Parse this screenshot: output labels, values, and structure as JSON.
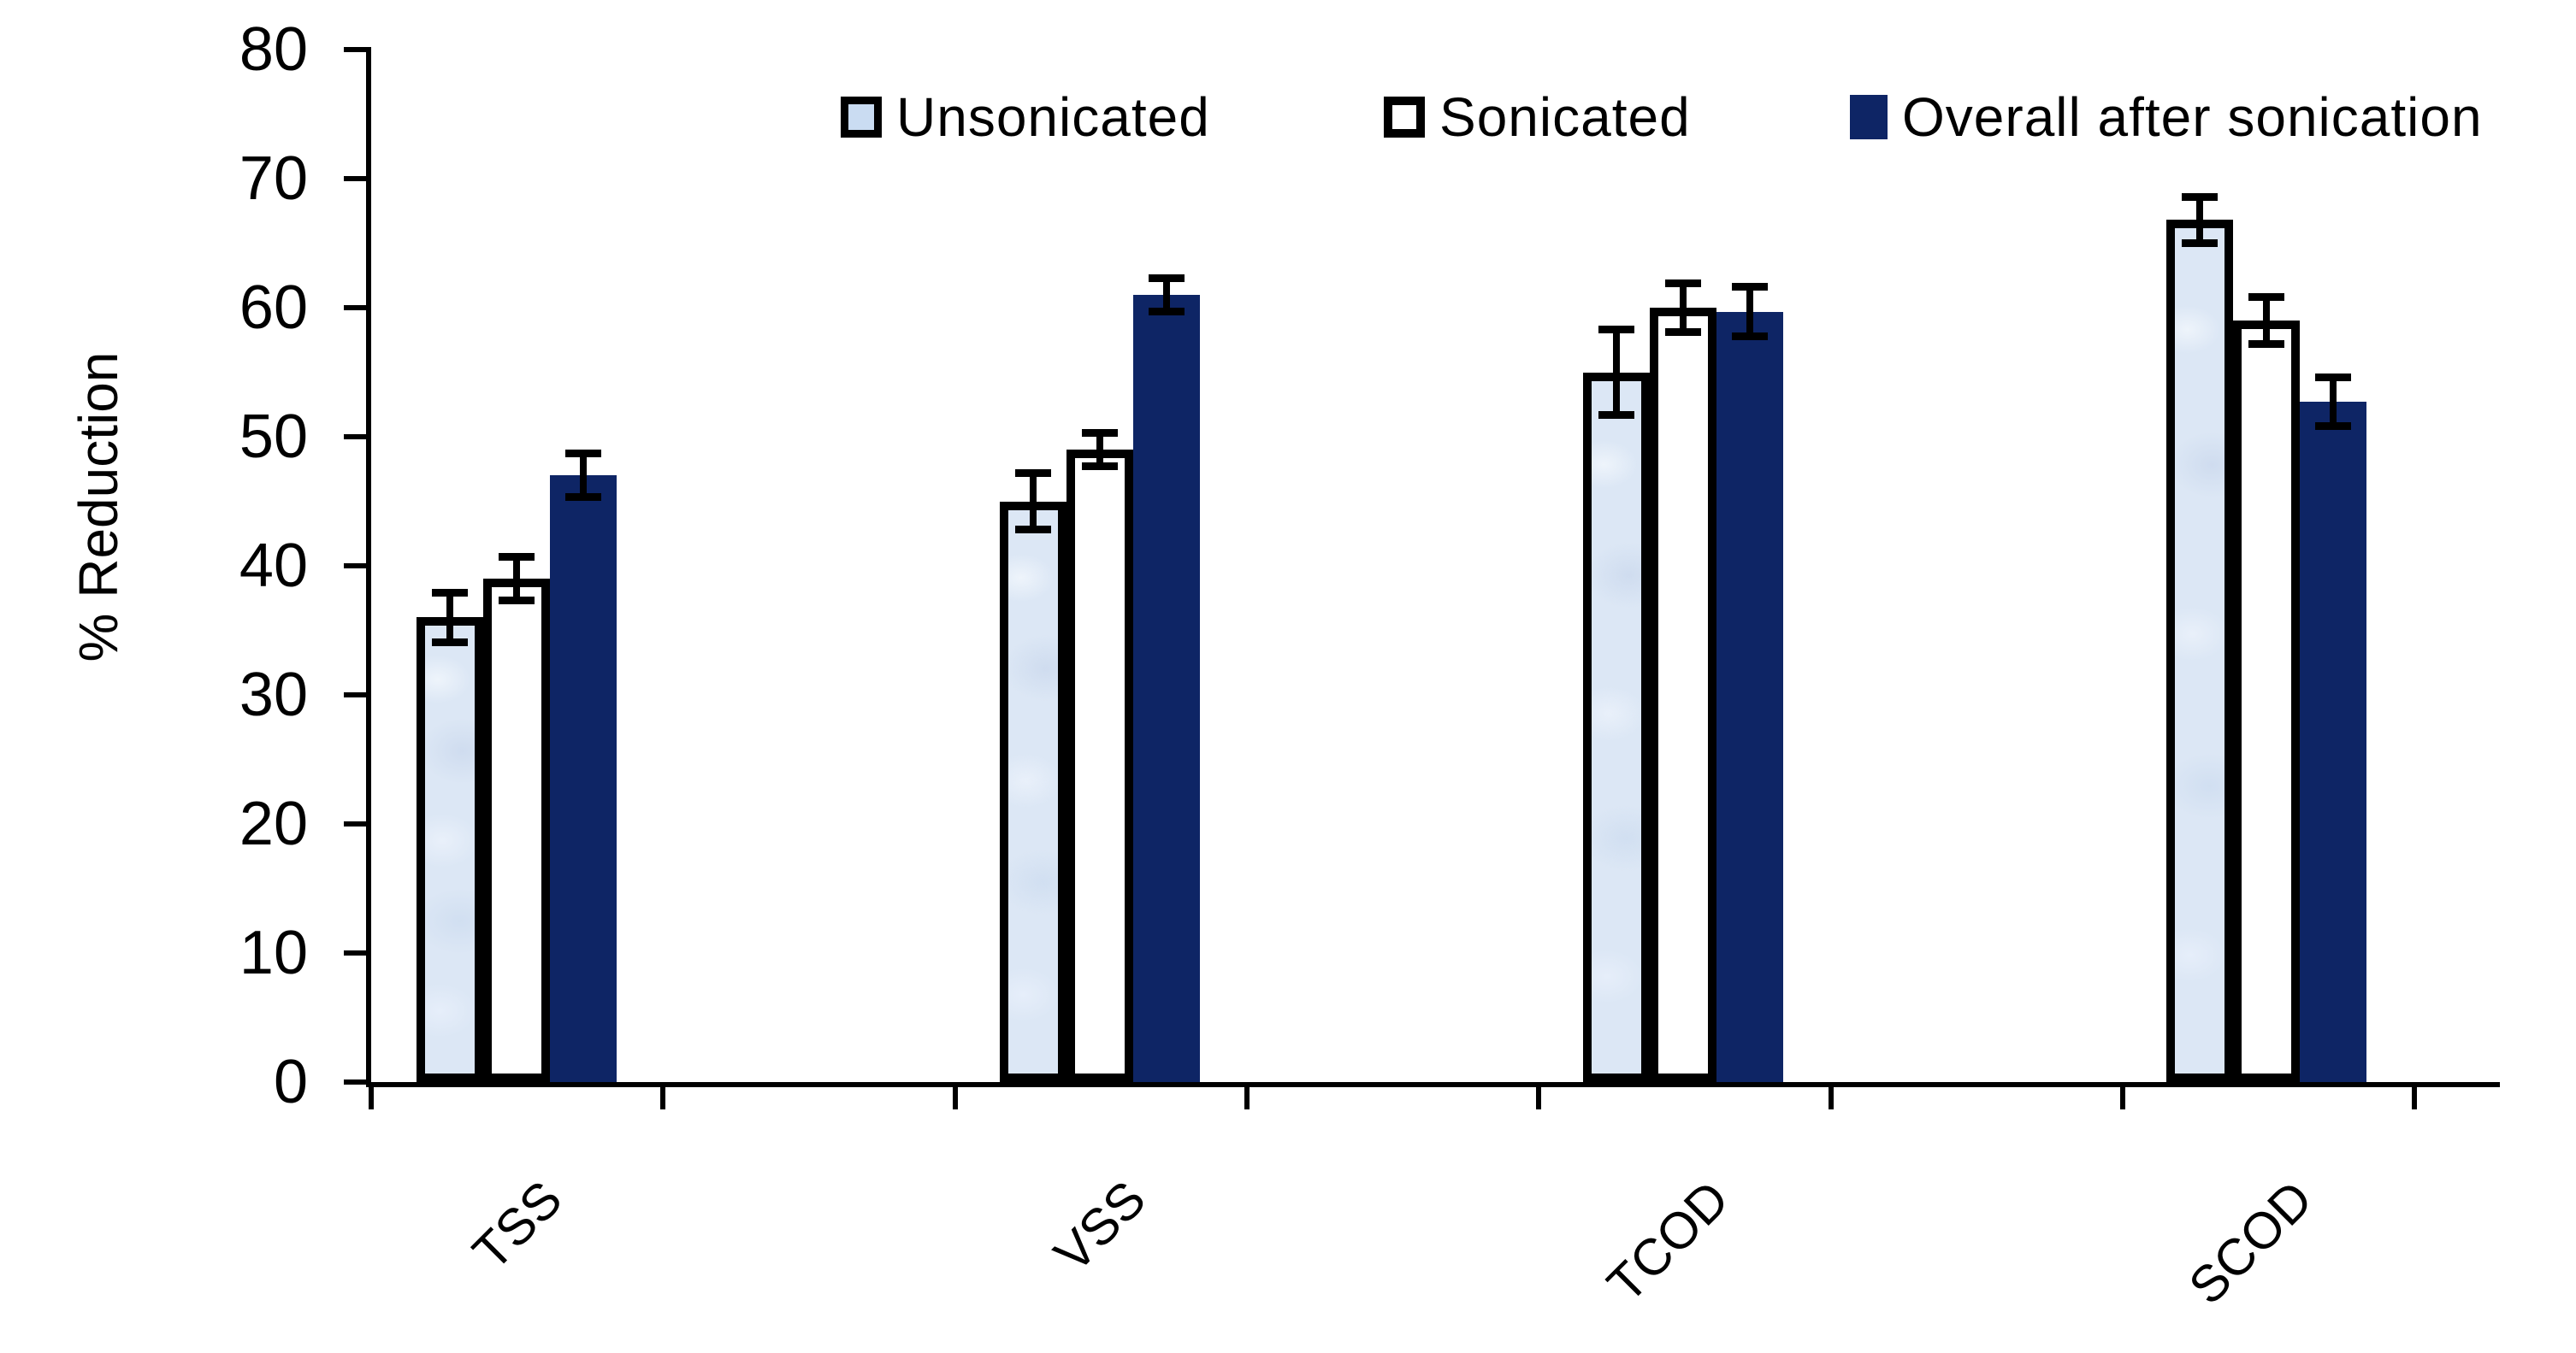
{
  "chart_data": {
    "type": "bar",
    "title": "",
    "xlabel": "",
    "ylabel": "% Reduction",
    "ylim": [
      0,
      80
    ],
    "yticks": [
      0,
      10,
      20,
      30,
      40,
      50,
      60,
      70,
      80
    ],
    "categories": [
      "TSS",
      "VSS",
      "TCOD",
      "SCOD"
    ],
    "grid": false,
    "legend_position": "top",
    "error_bars": true,
    "series": [
      {
        "name": "Unsonicated",
        "fill": "#dce7f5",
        "border": "#000000",
        "values": [
          36,
          45,
          55,
          66.8
        ],
        "errors": [
          2.2,
          2.5,
          3.6,
          2.1
        ]
      },
      {
        "name": "Sonicated",
        "fill": "#ffffff",
        "border": "#000000",
        "values": [
          39,
          49,
          60,
          59
        ],
        "errors": [
          2.0,
          1.6,
          2.2,
          2.1
        ]
      },
      {
        "name": "Overall after sonication",
        "fill": "#0e2565",
        "border": "none",
        "values": [
          47,
          61,
          59.7,
          52.7
        ],
        "errors": [
          2.0,
          1.6,
          2.2,
          2.2
        ]
      }
    ]
  },
  "colors": {
    "navy": "#0e2565",
    "light_blue": "#dce7f5",
    "legend_light_blue": "#cadcf2",
    "axis": "#000000",
    "background": "#ffffff"
  }
}
